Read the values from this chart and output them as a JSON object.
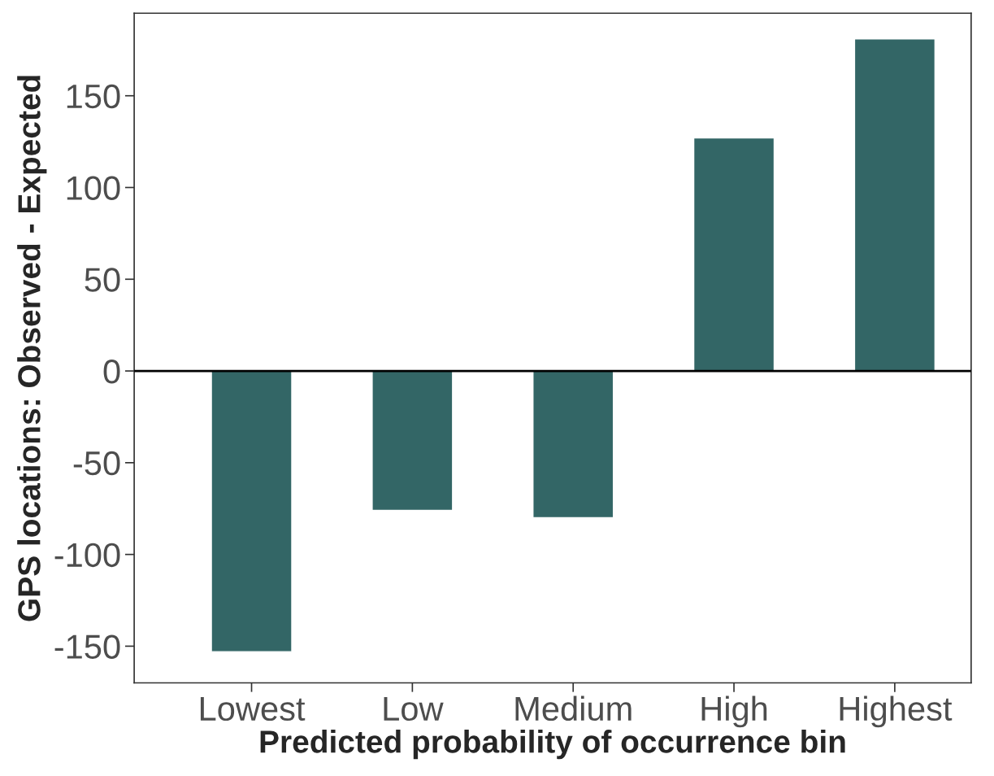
{
  "chart_data": {
    "type": "bar",
    "xlabel": "Predicted probability of occurrence bin",
    "ylabel": "GPS locations: Observed - Expected",
    "categories": [
      "Lowest",
      "Low",
      "Medium",
      "High",
      "Highest"
    ],
    "values": [
      -153,
      -76,
      -80,
      127,
      181
    ],
    "color": "#336666",
    "ylim": [
      -170,
      195
    ],
    "yticks": [
      -150,
      -100,
      -50,
      0,
      50,
      100,
      150
    ],
    "ref_lines": [
      {
        "axis": "y",
        "value": 0,
        "color": "#000000"
      }
    ],
    "grid": false
  }
}
